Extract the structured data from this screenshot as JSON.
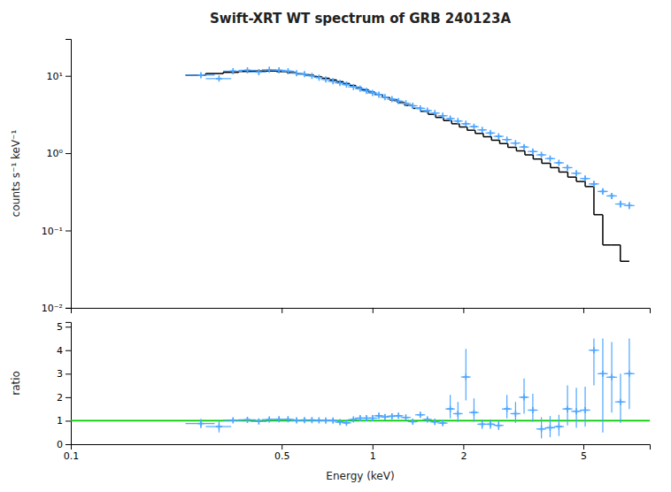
{
  "chart_data": [
    {
      "type": "errorbar",
      "title": "Swift-XRT WT spectrum of GRB 240123A",
      "ylabel": "counts s⁻¹ keV⁻¹",
      "log": true,
      "xlim": [
        0.1,
        8.3
      ],
      "xticks": [
        0.1,
        0.5,
        1,
        2,
        5
      ],
      "ylim": [
        0.01,
        30
      ],
      "yticks": [
        {
          "value": 0.01,
          "label": "10⁻²"
        },
        {
          "value": 0.1,
          "label": "10⁻¹"
        },
        {
          "value": 1,
          "label": "10⁰"
        },
        {
          "value": 10,
          "label": "10¹"
        }
      ],
      "grid": false,
      "tick_labels": "y",
      "series": [
        {
          "type": "errorbar",
          "color": "#4da6ff",
          "marker": "plus",
          "x": [
            0.27,
            0.31,
            0.345,
            0.385,
            0.42,
            0.455,
            0.49,
            0.525,
            0.56,
            0.595,
            0.63,
            0.665,
            0.7,
            0.74,
            0.78,
            0.82,
            0.865,
            0.91,
            0.955,
            1.0,
            1.05,
            1.1,
            1.16,
            1.22,
            1.29,
            1.36,
            1.44,
            1.52,
            1.61,
            1.71,
            1.81,
            1.92,
            2.04,
            2.17,
            2.31,
            2.46,
            2.62,
            2.79,
            2.98,
            3.18,
            3.4,
            3.63,
            3.88,
            4.15,
            4.43,
            4.74,
            5.07,
            5.42,
            5.8,
            6.21,
            6.64,
            7.1
          ],
          "x_err_low": [
            0.03,
            0.03,
            0.025,
            0.025,
            0.025,
            0.025,
            0.025,
            0.025,
            0.025,
            0.025,
            0.025,
            0.025,
            0.025,
            0.03,
            0.03,
            0.03,
            0.035,
            0.035,
            0.035,
            0.04,
            0.04,
            0.04,
            0.045,
            0.045,
            0.05,
            0.05,
            0.055,
            0.055,
            0.06,
            0.065,
            0.065,
            0.07,
            0.075,
            0.08,
            0.085,
            0.09,
            0.1,
            0.105,
            0.115,
            0.12,
            0.13,
            0.14,
            0.15,
            0.16,
            0.17,
            0.185,
            0.2,
            0.215,
            0.23,
            0.25,
            0.27,
            0.29
          ],
          "x_err_high": [
            0.03,
            0.03,
            0.025,
            0.025,
            0.025,
            0.025,
            0.025,
            0.025,
            0.025,
            0.025,
            0.025,
            0.025,
            0.025,
            0.03,
            0.03,
            0.03,
            0.035,
            0.035,
            0.035,
            0.04,
            0.04,
            0.04,
            0.045,
            0.045,
            0.05,
            0.05,
            0.055,
            0.055,
            0.06,
            0.065,
            0.065,
            0.07,
            0.075,
            0.08,
            0.085,
            0.09,
            0.1,
            0.105,
            0.115,
            0.12,
            0.13,
            0.14,
            0.15,
            0.16,
            0.17,
            0.185,
            0.2,
            0.215,
            0.23,
            0.25,
            0.27,
            0.29
          ],
          "values": [
            10.2,
            9.2,
            11.5,
            11.8,
            11.2,
            12.0,
            11.8,
            11.5,
            10.8,
            10.5,
            10.0,
            9.5,
            9.0,
            8.5,
            8.1,
            7.7,
            7.2,
            6.8,
            6.4,
            6.0,
            5.7,
            5.3,
            5.0,
            4.7,
            4.4,
            4.1,
            3.8,
            3.55,
            3.3,
            3.05,
            2.8,
            2.6,
            2.4,
            2.2,
            2.0,
            1.82,
            1.65,
            1.5,
            1.35,
            1.2,
            1.05,
            0.95,
            0.85,
            0.75,
            0.65,
            0.55,
            0.47,
            0.4,
            0.32,
            0.28,
            0.22,
            0.21
          ],
          "err_low": [
            0.5,
            0.55,
            0.55,
            0.55,
            0.5,
            0.5,
            0.5,
            0.5,
            0.45,
            0.45,
            0.42,
            0.4,
            0.38,
            0.36,
            0.34,
            0.32,
            0.3,
            0.28,
            0.27,
            0.25,
            0.24,
            0.22,
            0.21,
            0.2,
            0.19,
            0.18,
            0.17,
            0.16,
            0.15,
            0.14,
            0.13,
            0.12,
            0.12,
            0.11,
            0.1,
            0.095,
            0.088,
            0.082,
            0.075,
            0.07,
            0.065,
            0.06,
            0.056,
            0.051,
            0.046,
            0.041,
            0.037,
            0.033,
            0.029,
            0.026,
            0.023,
            0.022
          ],
          "err_high": [
            0.5,
            0.55,
            0.55,
            0.55,
            0.5,
            0.5,
            0.5,
            0.5,
            0.45,
            0.45,
            0.42,
            0.4,
            0.38,
            0.36,
            0.34,
            0.32,
            0.3,
            0.28,
            0.27,
            0.25,
            0.24,
            0.22,
            0.21,
            0.2,
            0.19,
            0.18,
            0.17,
            0.16,
            0.15,
            0.14,
            0.13,
            0.12,
            0.12,
            0.11,
            0.1,
            0.095,
            0.088,
            0.082,
            0.075,
            0.07,
            0.065,
            0.06,
            0.056,
            0.051,
            0.046,
            0.041,
            0.037,
            0.033,
            0.029,
            0.026,
            0.023,
            0.022
          ]
        },
        {
          "type": "step",
          "color": "#000000",
          "x_lo": [
            0.24,
            0.28,
            0.32,
            0.36,
            0.4,
            0.44,
            0.48,
            0.52,
            0.56,
            0.6,
            0.64,
            0.68,
            0.72,
            0.76,
            0.8,
            0.84,
            0.88,
            0.92,
            0.97,
            1.02,
            1.08,
            1.14,
            1.21,
            1.28,
            1.36,
            1.44,
            1.53,
            1.62,
            1.72,
            1.83,
            1.94,
            2.06,
            2.19,
            2.33,
            2.48,
            2.64,
            2.81,
            3.0,
            3.2,
            3.41,
            3.64,
            3.89,
            4.15,
            4.44,
            4.74,
            5.07,
            5.42,
            5.8,
            6.2,
            6.63
          ],
          "x_hi": [
            0.28,
            0.32,
            0.36,
            0.4,
            0.44,
            0.48,
            0.52,
            0.56,
            0.6,
            0.64,
            0.68,
            0.72,
            0.76,
            0.8,
            0.84,
            0.88,
            0.92,
            0.97,
            1.02,
            1.08,
            1.14,
            1.21,
            1.28,
            1.36,
            1.44,
            1.53,
            1.62,
            1.72,
            1.83,
            1.94,
            2.06,
            2.19,
            2.33,
            2.48,
            2.64,
            2.81,
            3.0,
            3.2,
            3.41,
            3.64,
            3.89,
            4.15,
            4.44,
            4.74,
            5.07,
            5.42,
            5.8,
            6.2,
            6.63,
            7.1
          ],
          "values": [
            10.2,
            10.7,
            11.1,
            11.4,
            11.55,
            11.55,
            11.35,
            11.0,
            10.6,
            10.2,
            9.75,
            9.3,
            8.85,
            8.4,
            7.95,
            7.5,
            7.05,
            6.6,
            6.15,
            5.7,
            5.28,
            4.88,
            4.5,
            4.14,
            3.8,
            3.48,
            3.18,
            2.9,
            2.64,
            2.4,
            2.18,
            1.98,
            1.8,
            1.63,
            1.47,
            1.33,
            1.19,
            1.07,
            0.95,
            0.84,
            0.74,
            0.65,
            0.57,
            0.49,
            0.43,
            0.37,
            0.16,
            0.065,
            0.065,
            0.04
          ]
        }
      ]
    },
    {
      "type": "errorbar",
      "xlabel": "Energy (keV)",
      "ylabel": "ratio",
      "log": "x",
      "xlim": [
        0.1,
        8.3
      ],
      "xticks": [
        0.1,
        0.5,
        1,
        2,
        5
      ],
      "ylim": [
        0,
        5.2
      ],
      "yticks": [
        0,
        1,
        2,
        3,
        4,
        5
      ],
      "grid": false,
      "series": [
        {
          "type": "errorbar",
          "color": "#4da6ff",
          "marker": "plus",
          "x": [
            0.27,
            0.31,
            0.345,
            0.385,
            0.42,
            0.455,
            0.49,
            0.525,
            0.56,
            0.595,
            0.63,
            0.665,
            0.7,
            0.74,
            0.78,
            0.82,
            0.865,
            0.91,
            0.955,
            1.0,
            1.05,
            1.1,
            1.16,
            1.22,
            1.29,
            1.36,
            1.44,
            1.52,
            1.61,
            1.71,
            1.81,
            1.92,
            2.04,
            2.17,
            2.31,
            2.46,
            2.62,
            2.79,
            2.98,
            3.18,
            3.4,
            3.63,
            3.88,
            4.15,
            4.43,
            4.74,
            5.07,
            5.42,
            5.8,
            6.21,
            6.64,
            7.1
          ],
          "x_err_low": [
            0.03,
            0.03,
            0.025,
            0.025,
            0.025,
            0.025,
            0.025,
            0.025,
            0.025,
            0.025,
            0.025,
            0.025,
            0.025,
            0.03,
            0.03,
            0.03,
            0.035,
            0.035,
            0.035,
            0.04,
            0.04,
            0.04,
            0.045,
            0.045,
            0.05,
            0.05,
            0.055,
            0.055,
            0.06,
            0.065,
            0.065,
            0.07,
            0.075,
            0.08,
            0.085,
            0.09,
            0.1,
            0.105,
            0.115,
            0.12,
            0.13,
            0.14,
            0.15,
            0.16,
            0.17,
            0.185,
            0.2,
            0.215,
            0.23,
            0.25,
            0.27,
            0.29
          ],
          "x_err_high": [
            0.03,
            0.03,
            0.025,
            0.025,
            0.025,
            0.025,
            0.025,
            0.025,
            0.025,
            0.025,
            0.025,
            0.025,
            0.025,
            0.03,
            0.03,
            0.03,
            0.035,
            0.035,
            0.035,
            0.04,
            0.04,
            0.04,
            0.045,
            0.045,
            0.05,
            0.05,
            0.055,
            0.055,
            0.06,
            0.065,
            0.065,
            0.07,
            0.075,
            0.08,
            0.085,
            0.09,
            0.1,
            0.105,
            0.115,
            0.12,
            0.13,
            0.14,
            0.15,
            0.16,
            0.17,
            0.185,
            0.2,
            0.215,
            0.23,
            0.25,
            0.27,
            0.29
          ],
          "values": [
            0.88,
            0.75,
            1.02,
            1.04,
            0.97,
            1.05,
            1.06,
            1.06,
            1.02,
            1.03,
            1.03,
            1.02,
            1.01,
            1.01,
            0.94,
            0.91,
            1.05,
            1.11,
            1.11,
            1.11,
            1.21,
            1.16,
            1.19,
            1.21,
            1.14,
            0.96,
            1.25,
            1.05,
            0.95,
            0.9,
            1.5,
            1.3,
            2.86,
            1.35,
            0.85,
            0.85,
            0.8,
            1.5,
            1.3,
            2.0,
            1.45,
            0.65,
            0.7,
            0.75,
            1.5,
            1.4,
            1.45,
            4.0,
            3.0,
            2.85,
            1.8,
            3.0
          ],
          "err_low": [
            0.2,
            0.25,
            0.1,
            0.1,
            0.1,
            0.1,
            0.1,
            0.1,
            0.09,
            0.09,
            0.09,
            0.09,
            0.09,
            0.09,
            0.09,
            0.08,
            0.09,
            0.1,
            0.1,
            0.1,
            0.11,
            0.11,
            0.11,
            0.12,
            0.11,
            0.1,
            0.12,
            0.12,
            0.12,
            0.12,
            0.4,
            0.35,
            1.0,
            0.4,
            0.2,
            0.2,
            0.2,
            0.4,
            0.4,
            0.7,
            0.5,
            0.4,
            0.4,
            0.4,
            0.7,
            0.7,
            0.7,
            1.5,
            2.5,
            1.5,
            0.9,
            1.5
          ],
          "err_high": [
            0.2,
            0.25,
            0.1,
            0.1,
            0.1,
            0.1,
            0.1,
            0.1,
            0.09,
            0.09,
            0.09,
            0.09,
            0.09,
            0.09,
            0.09,
            0.08,
            0.09,
            0.1,
            0.1,
            0.1,
            0.11,
            0.11,
            0.11,
            0.12,
            0.11,
            0.1,
            0.12,
            0.12,
            0.12,
            0.12,
            0.6,
            0.5,
            1.2,
            0.6,
            0.2,
            0.2,
            0.2,
            0.6,
            0.5,
            0.8,
            0.7,
            0.5,
            0.5,
            0.5,
            1.0,
            1.0,
            1.0,
            0.5,
            1.5,
            1.5,
            1.2,
            1.5
          ]
        },
        {
          "type": "hline",
          "color": "#00cc00",
          "values": [
            1.0
          ]
        }
      ]
    }
  ]
}
